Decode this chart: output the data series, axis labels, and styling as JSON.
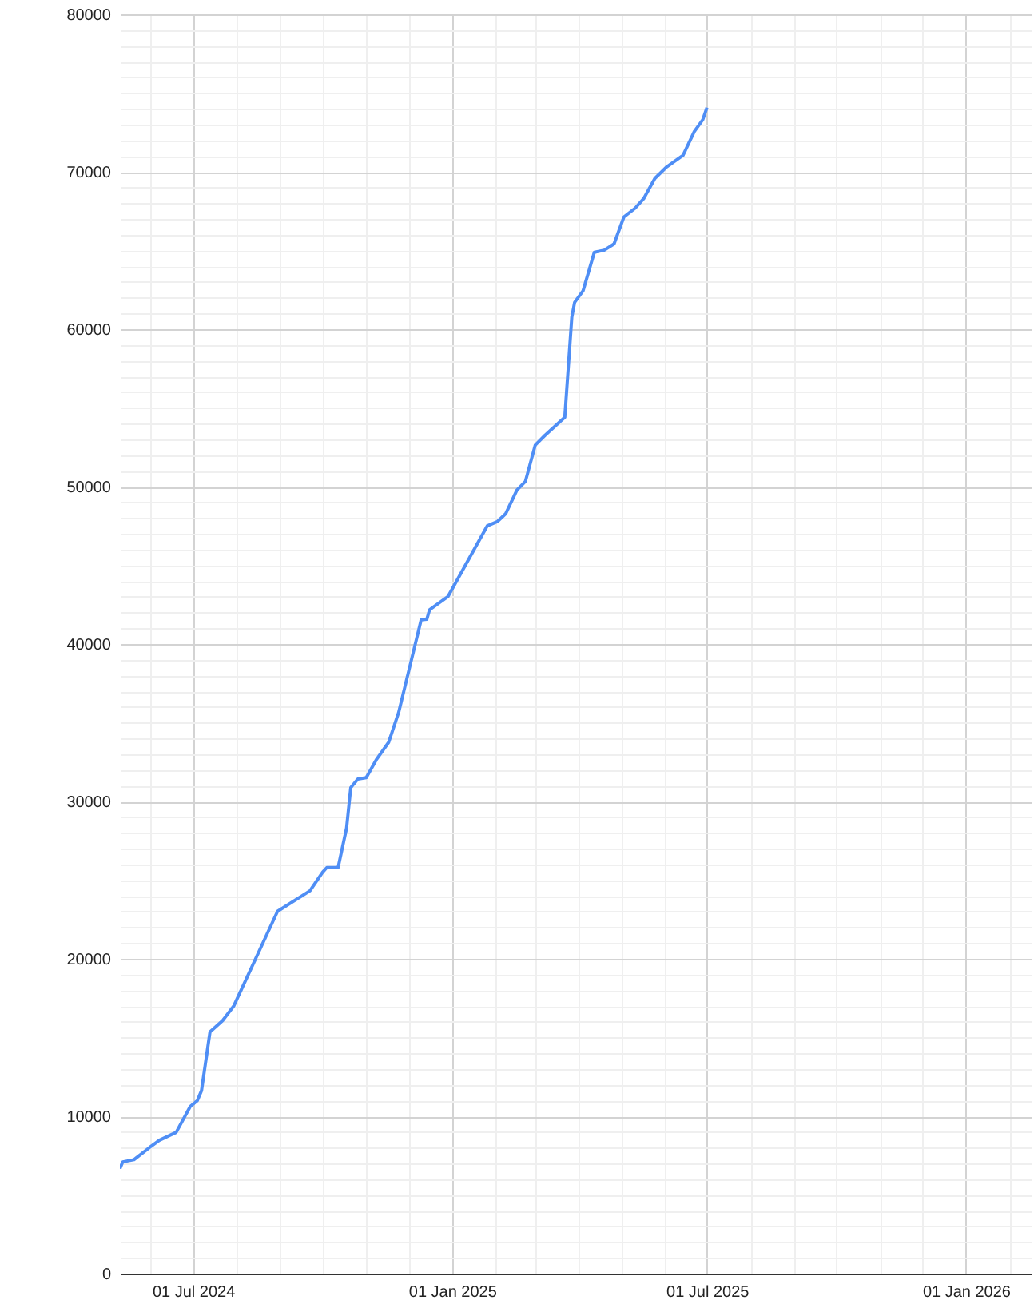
{
  "chart_data": {
    "type": "line",
    "x": [
      "2024-05-10",
      "2024-05-12",
      "2024-05-20",
      "2024-05-31",
      "2024-06-07",
      "2024-06-19",
      "2024-06-29",
      "2024-07-04",
      "2024-07-07",
      "2024-07-13",
      "2024-07-22",
      "2024-07-30",
      "2024-08-30",
      "2024-09-22",
      "2024-10-01",
      "2024-10-04",
      "2024-10-12",
      "2024-10-18",
      "2024-10-21",
      "2024-10-26",
      "2024-11-01",
      "2024-11-08",
      "2024-11-17",
      "2024-11-24",
      "2024-12-10",
      "2024-12-14",
      "2024-12-16",
      "2024-12-29",
      "2025-01-26",
      "2025-02-02",
      "2025-02-08",
      "2025-02-16",
      "2025-02-22",
      "2025-03-01",
      "2025-03-08",
      "2025-03-22",
      "2025-03-27",
      "2025-03-29",
      "2025-04-04",
      "2025-04-12",
      "2025-04-19",
      "2025-04-26",
      "2025-05-03",
      "2025-05-11",
      "2025-05-17",
      "2025-05-25",
      "2025-06-02",
      "2025-06-14",
      "2025-06-22",
      "2025-06-28",
      "2025-07-01"
    ],
    "series": [
      {
        "color": "#4f8ef5",
        "values": [
          6660,
          7100,
          7240,
          8010,
          8470,
          8980,
          10620,
          10990,
          11630,
          15350,
          16080,
          17020,
          23020,
          24320,
          25500,
          25800,
          25800,
          28300,
          30880,
          31420,
          31510,
          32630,
          33770,
          35650,
          41540,
          41570,
          42180,
          43010,
          47510,
          47770,
          48270,
          49780,
          50320,
          52630,
          53260,
          54400,
          60770,
          61710,
          62440,
          64890,
          65020,
          65420,
          67130,
          67690,
          68290,
          69580,
          70280,
          71050,
          72560,
          73310,
          74080
        ]
      }
    ],
    "xlim": [
      "2024-05-10",
      "2026-02-16"
    ],
    "xticks": [
      {
        "value": "2024-06-01",
        "label": null
      },
      {
        "value": "2024-07-01",
        "label": "01 Jul 2024"
      },
      {
        "value": "2024-08-01",
        "label": null
      },
      {
        "value": "2024-09-01",
        "label": null
      },
      {
        "value": "2024-10-01",
        "label": null
      },
      {
        "value": "2024-11-01",
        "label": null
      },
      {
        "value": "2024-12-01",
        "label": null
      },
      {
        "value": "2025-01-01",
        "label": "01 Jan 2025"
      },
      {
        "value": "2025-02-01",
        "label": null
      },
      {
        "value": "2025-03-01",
        "label": null
      },
      {
        "value": "2025-04-01",
        "label": null
      },
      {
        "value": "2025-05-01",
        "label": null
      },
      {
        "value": "2025-06-01",
        "label": null
      },
      {
        "value": "2025-07-01",
        "label": "01 Jul 2025"
      },
      {
        "value": "2025-08-01",
        "label": null
      },
      {
        "value": "2025-09-01",
        "label": null
      },
      {
        "value": "2025-10-01",
        "label": null
      },
      {
        "value": "2025-11-01",
        "label": null
      },
      {
        "value": "2025-12-01",
        "label": null
      },
      {
        "value": "2026-01-01",
        "label": "01 Jan 2026"
      },
      {
        "value": "2026-02-01",
        "label": null
      }
    ],
    "ylim": [
      0,
      80000
    ],
    "yticks": [
      0,
      {
        "value": 1000,
        "label": null
      },
      {
        "value": 2000,
        "label": null
      },
      {
        "value": 3000,
        "label": null
      },
      {
        "value": 4000,
        "label": null
      },
      {
        "value": 5000,
        "label": null
      },
      {
        "value": 6000,
        "label": null
      },
      {
        "value": 7000,
        "label": null
      },
      {
        "value": 8000,
        "label": null
      },
      {
        "value": 9000,
        "label": null
      },
      10000,
      {
        "value": 11000,
        "label": null
      },
      {
        "value": 12000,
        "label": null
      },
      {
        "value": 13000,
        "label": null
      },
      {
        "value": 14000,
        "label": null
      },
      {
        "value": 15000,
        "label": null
      },
      {
        "value": 16000,
        "label": null
      },
      {
        "value": 17000,
        "label": null
      },
      {
        "value": 18000,
        "label": null
      },
      {
        "value": 19000,
        "label": null
      },
      20000,
      {
        "value": 21000,
        "label": null
      },
      {
        "value": 22000,
        "label": null
      },
      {
        "value": 23000,
        "label": null
      },
      {
        "value": 24000,
        "label": null
      },
      {
        "value": 25000,
        "label": null
      },
      {
        "value": 26000,
        "label": null
      },
      {
        "value": 27000,
        "label": null
      },
      {
        "value": 28000,
        "label": null
      },
      {
        "value": 29000,
        "label": null
      },
      30000,
      {
        "value": 31000,
        "label": null
      },
      {
        "value": 32000,
        "label": null
      },
      {
        "value": 33000,
        "label": null
      },
      {
        "value": 34000,
        "label": null
      },
      {
        "value": 35000,
        "label": null
      },
      {
        "value": 36000,
        "label": null
      },
      {
        "value": 37000,
        "label": null
      },
      {
        "value": 38000,
        "label": null
      },
      {
        "value": 39000,
        "label": null
      },
      40000,
      {
        "value": 41000,
        "label": null
      },
      {
        "value": 42000,
        "label": null
      },
      {
        "value": 43000,
        "label": null
      },
      {
        "value": 44000,
        "label": null
      },
      {
        "value": 45000,
        "label": null
      },
      {
        "value": 46000,
        "label": null
      },
      {
        "value": 47000,
        "label": null
      },
      {
        "value": 48000,
        "label": null
      },
      {
        "value": 49000,
        "label": null
      },
      50000,
      {
        "value": 51000,
        "label": null
      },
      {
        "value": 52000,
        "label": null
      },
      {
        "value": 53000,
        "label": null
      },
      {
        "value": 54000,
        "label": null
      },
      {
        "value": 55000,
        "label": null
      },
      {
        "value": 56000,
        "label": null
      },
      {
        "value": 57000,
        "label": null
      },
      {
        "value": 58000,
        "label": null
      },
      {
        "value": 59000,
        "label": null
      },
      60000,
      {
        "value": 61000,
        "label": null
      },
      {
        "value": 62000,
        "label": null
      },
      {
        "value": 63000,
        "label": null
      },
      {
        "value": 64000,
        "label": null
      },
      {
        "value": 65000,
        "label": null
      },
      {
        "value": 66000,
        "label": null
      },
      {
        "value": 67000,
        "label": null
      },
      {
        "value": 68000,
        "label": null
      },
      {
        "value": 69000,
        "label": null
      },
      70000,
      {
        "value": 71000,
        "label": null
      },
      {
        "value": 72000,
        "label": null
      },
      {
        "value": 73000,
        "label": null
      },
      {
        "value": 74000,
        "label": null
      },
      {
        "value": 75000,
        "label": null
      },
      {
        "value": 76000,
        "label": null
      },
      {
        "value": 77000,
        "label": null
      },
      {
        "value": 78000,
        "label": null
      },
      {
        "value": 79000,
        "label": null
      },
      80000
    ],
    "grid": true
  }
}
